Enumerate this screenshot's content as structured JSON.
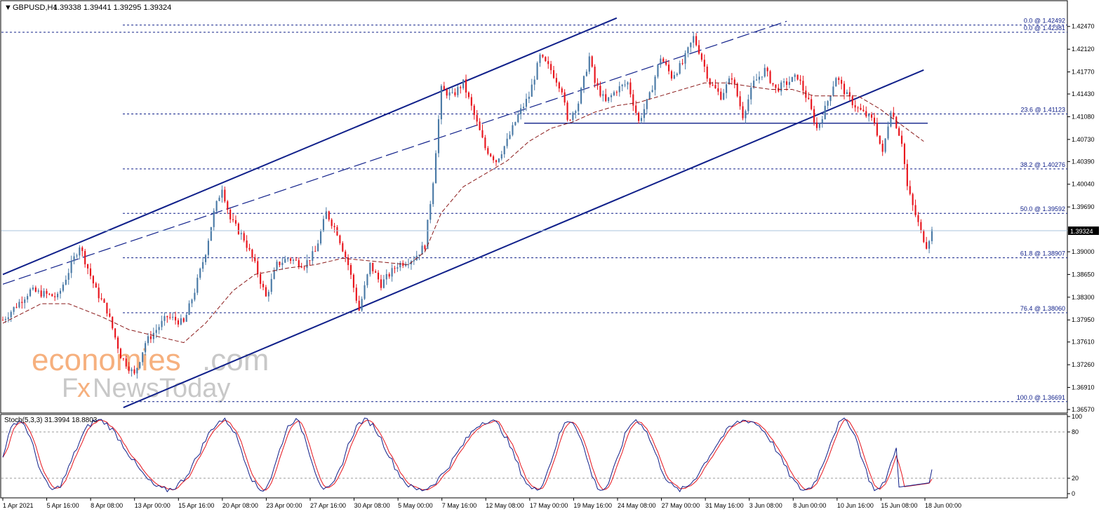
{
  "header": {
    "symbol": "GBPUSD,H4",
    "ohlc": "1.39338 1.39441 1.39295 1.39324"
  },
  "watermark": {
    "line1_a": "economies",
    "line1_b": ".com",
    "line2_a": "F",
    "line2_b": "x",
    "line2_c": "NewsToday"
  },
  "colors": {
    "bull": "#4a7aa6",
    "bear": "#e8141c",
    "channel": "#10208a",
    "fib": "#10208a",
    "ma": "#8b1a1a",
    "current_price_line": "#a9c6de",
    "stoch_main": "#10208a",
    "stoch_signal": "#e8141c",
    "watermark_orange": "#f6b07e",
    "watermark_gray": "#c8c8c8"
  },
  "chart_data": [
    {
      "type": "candlestick",
      "title": "GBPUSD,H4",
      "ylim": [
        1.3657,
        1.4264
      ],
      "y_ticks": [
        "1.42470",
        "1.42120",
        "1.41770",
        "1.41430",
        "1.41080",
        "1.40730",
        "1.40390",
        "1.40040",
        "1.39690",
        "1.39000",
        "1.38650",
        "1.38300",
        "1.37950",
        "1.37610",
        "1.37260",
        "1.36910",
        "1.36570"
      ],
      "x_ticks": [
        "1 Apr 2021",
        "5 Apr 16:00",
        "8 Apr 08:00",
        "13 Apr 00:00",
        "15 Apr 16:00",
        "20 Apr 08:00",
        "23 Apr 00:00",
        "27 Apr 16:00",
        "30 Apr 08:00",
        "5 May 00:00",
        "7 May 16:00",
        "12 May 08:00",
        "17 May 00:00",
        "19 May 16:00",
        "24 May 08:00",
        "27 May 00:00",
        "31 May 16:00",
        "3 Jun 08:00",
        "8 Jun 00:00",
        "10 Jun 16:00",
        "15 Jun 08:00",
        "18 Jun 00:00"
      ],
      "current_price": "1.39324",
      "price_path": [
        [
          0,
          1.3795
        ],
        [
          10,
          1.384
        ],
        [
          20,
          1.383
        ],
        [
          28,
          1.391
        ],
        [
          34,
          1.384
        ],
        [
          38,
          1.381
        ],
        [
          43,
          1.374
        ],
        [
          48,
          1.371
        ],
        [
          52,
          1.376
        ],
        [
          56,
          1.378
        ],
        [
          60,
          1.38
        ],
        [
          66,
          1.379
        ],
        [
          70,
          1.384
        ],
        [
          74,
          1.39
        ],
        [
          77,
          1.396
        ],
        [
          80,
          1.4
        ],
        [
          83,
          1.395
        ],
        [
          88,
          1.392
        ],
        [
          92,
          1.388
        ],
        [
          96,
          1.383
        ],
        [
          100,
          1.388
        ],
        [
          104,
          1.389
        ],
        [
          110,
          1.388
        ],
        [
          114,
          1.39
        ],
        [
          118,
          1.396
        ],
        [
          122,
          1.393
        ],
        [
          126,
          1.388
        ],
        [
          130,
          1.381
        ],
        [
          134,
          1.388
        ],
        [
          138,
          1.385
        ],
        [
          144,
          1.388
        ],
        [
          150,
          1.389
        ],
        [
          154,
          1.391
        ],
        [
          157,
          1.401
        ],
        [
          160,
          1.415
        ],
        [
          164,
          1.414
        ],
        [
          168,
          1.416
        ],
        [
          172,
          1.411
        ],
        [
          176,
          1.406
        ],
        [
          180,
          1.404
        ],
        [
          184,
          1.407
        ],
        [
          188,
          1.411
        ],
        [
          192,
          1.414
        ],
        [
          196,
          1.42
        ],
        [
          200,
          1.418
        ],
        [
          204,
          1.415
        ],
        [
          206,
          1.41
        ],
        [
          210,
          1.413
        ],
        [
          214,
          1.42
        ],
        [
          216,
          1.416
        ],
        [
          220,
          1.413
        ],
        [
          224,
          1.415
        ],
        [
          228,
          1.416
        ],
        [
          232,
          1.41
        ],
        [
          236,
          1.414
        ],
        [
          240,
          1.42
        ],
        [
          244,
          1.417
        ],
        [
          248,
          1.419
        ],
        [
          252,
          1.423
        ],
        [
          254,
          1.421
        ],
        [
          258,
          1.416
        ],
        [
          262,
          1.414
        ],
        [
          266,
          1.417
        ],
        [
          270,
          1.411
        ],
        [
          274,
          1.416
        ],
        [
          278,
          1.418
        ],
        [
          282,
          1.415
        ],
        [
          286,
          1.416
        ],
        [
          290,
          1.417
        ],
        [
          294,
          1.413
        ],
        [
          297,
          1.409
        ],
        [
          300,
          1.412
        ],
        [
          304,
          1.417
        ],
        [
          308,
          1.414
        ],
        [
          312,
          1.412
        ],
        [
          315,
          1.411
        ],
        [
          318,
          1.41
        ],
        [
          321,
          1.405
        ],
        [
          324,
          1.412
        ],
        [
          328,
          1.407
        ],
        [
          330,
          1.4
        ],
        [
          332,
          1.397
        ],
        [
          335,
          1.393
        ],
        [
          337,
          1.391
        ],
        [
          339,
          1.3932
        ]
      ],
      "fibonacci_levels": [
        {
          "label": "0.0 @ 1.42492",
          "price": 1.42492
        },
        {
          "label": "0.0 @ 1.42381",
          "price": 1.42381
        },
        {
          "label": "23.6 @ 1.41123",
          "price": 1.41123
        },
        {
          "label": "38.2 @ 1.40276",
          "price": 1.40276
        },
        {
          "label": "50.0 @ 1.39592",
          "price": 1.39592
        },
        {
          "label": "61.8 @ 1.38907",
          "price": 1.38907
        },
        {
          "label": "76.4 @ 1.38060",
          "price": 1.3806
        },
        {
          "label": "100.0 @ 1.36691",
          "price": 1.36691
        }
      ],
      "horizontal_support": 1.4098,
      "channel": {
        "upper_line": [
          [
            0,
            1.3865
          ],
          [
            224,
            1.426
          ]
        ],
        "lower_line": [
          [
            44,
            1.366
          ],
          [
            336,
            1.418
          ]
        ],
        "dashed_midline": [
          [
            0,
            1.385
          ],
          [
            286,
            1.4255
          ]
        ]
      },
      "moving_average": [
        [
          0,
          1.379
        ],
        [
          14,
          1.382
        ],
        [
          24,
          1.382
        ],
        [
          36,
          1.38
        ],
        [
          46,
          1.378
        ],
        [
          56,
          1.377
        ],
        [
          66,
          1.376
        ],
        [
          74,
          1.379
        ],
        [
          84,
          1.384
        ],
        [
          92,
          1.3865
        ],
        [
          104,
          1.3875
        ],
        [
          114,
          1.388
        ],
        [
          124,
          1.389
        ],
        [
          136,
          1.3885
        ],
        [
          148,
          1.388
        ],
        [
          154,
          1.39
        ],
        [
          160,
          1.396
        ],
        [
          168,
          1.4
        ],
        [
          176,
          1.402
        ],
        [
          184,
          1.404
        ],
        [
          192,
          1.407
        ],
        [
          200,
          1.409
        ],
        [
          208,
          1.41
        ],
        [
          216,
          1.4115
        ],
        [
          224,
          1.4125
        ],
        [
          232,
          1.413
        ],
        [
          240,
          1.414
        ],
        [
          248,
          1.415
        ],
        [
          256,
          1.416
        ],
        [
          264,
          1.416
        ],
        [
          272,
          1.4155
        ],
        [
          280,
          1.415
        ],
        [
          288,
          1.415
        ],
        [
          296,
          1.414
        ],
        [
          304,
          1.414
        ],
        [
          312,
          1.414
        ],
        [
          320,
          1.412
        ],
        [
          328,
          1.4095
        ],
        [
          336,
          1.407
        ]
      ]
    },
    {
      "type": "line",
      "title": "Stoch(5,3,3) 31.3994 18.8803",
      "ylim": [
        0,
        100
      ],
      "y_ticks": [
        "100",
        "80",
        "20",
        "0"
      ],
      "levels": [
        80,
        20
      ],
      "series": [
        {
          "name": "main",
          "value": 31.3994
        },
        {
          "name": "signal",
          "value": 18.8803
        }
      ]
    }
  ]
}
